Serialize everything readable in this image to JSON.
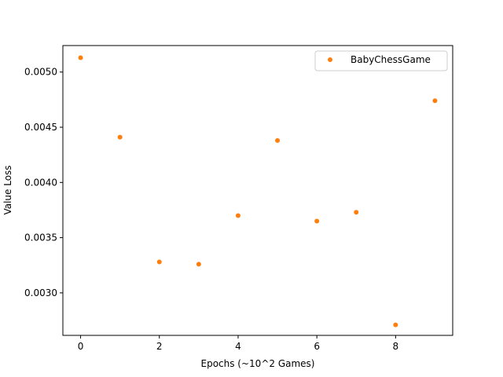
{
  "chart_data": {
    "type": "scatter",
    "title": "",
    "xlabel": "Epochs (~10^2 Games)",
    "ylabel": "Value Loss",
    "xlim": [
      -0.45,
      9.45
    ],
    "ylim": [
      0.002615,
      0.00524
    ],
    "xticks": [
      0,
      2,
      4,
      6,
      8
    ],
    "xtick_labels": [
      "0",
      "2",
      "4",
      "6",
      "8"
    ],
    "yticks": [
      0.003,
      0.0035,
      0.004,
      0.0045,
      0.005
    ],
    "ytick_labels": [
      "0.0030",
      "0.0035",
      "0.0040",
      "0.0045",
      "0.0050"
    ],
    "grid": false,
    "legend_position": "top-right",
    "series": [
      {
        "name": "BabyChessGame",
        "color": "#ff7f0e",
        "x": [
          0,
          1,
          2,
          3,
          4,
          5,
          6,
          7,
          8,
          9
        ],
        "y": [
          0.00513,
          0.00441,
          0.00328,
          0.00326,
          0.0037,
          0.00438,
          0.00365,
          0.00373,
          0.00271,
          0.00474
        ]
      }
    ]
  }
}
